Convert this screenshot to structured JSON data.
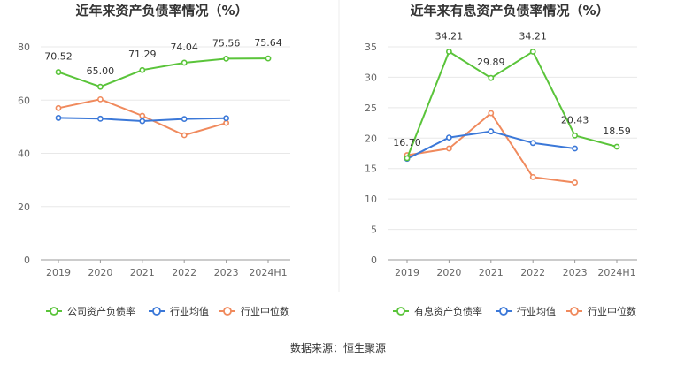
{
  "source": "数据来源：恒生聚源",
  "chart_data": [
    {
      "type": "line",
      "title": "近年来资产负债率情况（%）",
      "categories": [
        "2019",
        "2020",
        "2021",
        "2022",
        "2023",
        "2024H1"
      ],
      "ylim": [
        0,
        80
      ],
      "yticks": [
        0,
        20,
        40,
        60,
        80
      ],
      "grid": true,
      "legend_position": "bottom",
      "series": [
        {
          "name": "公司资产负债率",
          "color": "#5ac43a",
          "values": [
            70.52,
            65.0,
            71.29,
            74.04,
            75.56,
            75.64
          ],
          "labels": [
            "70.52",
            "65.00",
            "71.29",
            "74.04",
            "75.56",
            "75.64"
          ]
        },
        {
          "name": "行业均值",
          "color": "#3b78d8",
          "values": [
            53.3,
            53.0,
            52.1,
            52.9,
            53.2,
            null
          ],
          "labels": []
        },
        {
          "name": "行业中位数",
          "color": "#f08a5d",
          "values": [
            57.0,
            60.3,
            54.1,
            46.8,
            51.4,
            null
          ],
          "labels": []
        }
      ]
    },
    {
      "type": "line",
      "title": "近年来有息资产负债率情况（%）",
      "categories": [
        "2019",
        "2020",
        "2021",
        "2022",
        "2023",
        "2024H1"
      ],
      "ylim": [
        0,
        35
      ],
      "yticks": [
        0,
        5,
        10,
        15,
        20,
        25,
        30,
        35
      ],
      "grid": true,
      "legend_position": "bottom",
      "series": [
        {
          "name": "有息资产负债率",
          "color": "#5ac43a",
          "values": [
            16.7,
            34.21,
            29.89,
            34.21,
            20.43,
            18.59
          ],
          "labels": [
            "16.70",
            "34.21",
            "29.89",
            "34.21",
            "20.43",
            "18.59"
          ]
        },
        {
          "name": "行业均值",
          "color": "#3b78d8",
          "values": [
            16.6,
            20.1,
            21.1,
            19.2,
            18.3,
            null
          ],
          "labels": []
        },
        {
          "name": "行业中位数",
          "color": "#f08a5d",
          "values": [
            17.2,
            18.3,
            24.1,
            13.6,
            12.7,
            null
          ],
          "labels": []
        }
      ]
    }
  ]
}
